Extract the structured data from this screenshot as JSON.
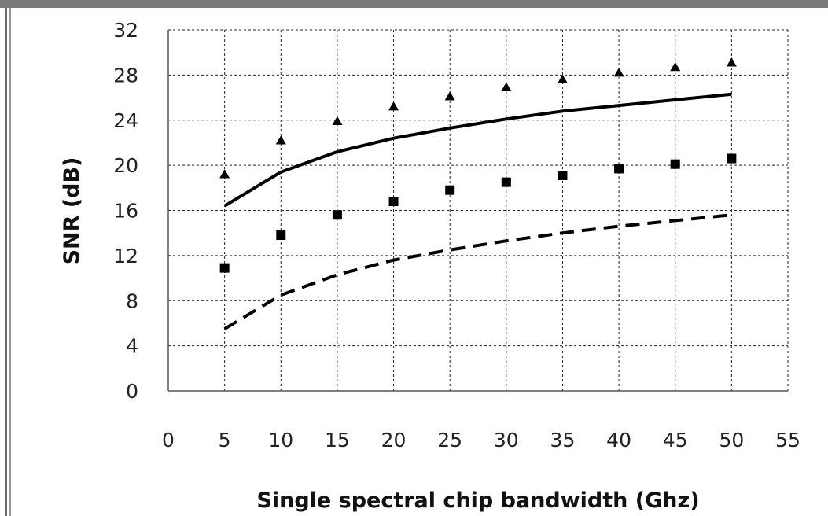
{
  "chart_data": {
    "type": "line",
    "xlabel": "Single spectral chip bandwidth (Ghz)",
    "ylabel": "SNR (dB)",
    "xlim": [
      0,
      55
    ],
    "ylim": [
      0,
      32
    ],
    "x_ticks": [
      0,
      5,
      10,
      15,
      20,
      25,
      30,
      35,
      40,
      45,
      50,
      55
    ],
    "y_ticks": [
      0,
      4,
      8,
      12,
      16,
      20,
      24,
      28,
      32
    ],
    "grid": true,
    "legend": "none",
    "series": [
      {
        "style": "solid-line",
        "color": "#000000",
        "x": [
          5,
          10,
          15,
          20,
          25,
          30,
          35,
          40,
          45,
          50
        ],
        "y": [
          16.4,
          19.4,
          21.2,
          22.4,
          23.3,
          24.1,
          24.8,
          25.3,
          25.8,
          26.3
        ]
      },
      {
        "style": "dashed-line",
        "color": "#000000",
        "x": [
          5,
          10,
          15,
          20,
          25,
          30,
          35,
          40,
          45,
          50
        ],
        "y": [
          5.5,
          8.5,
          10.3,
          11.6,
          12.5,
          13.3,
          14.0,
          14.6,
          15.1,
          15.6
        ]
      },
      {
        "style": "triangle-markers",
        "color": "#000000",
        "x": [
          5,
          10,
          15,
          20,
          25,
          30,
          35,
          40,
          45,
          50
        ],
        "y": [
          19.2,
          22.2,
          23.9,
          25.2,
          26.1,
          26.9,
          27.6,
          28.2,
          28.7,
          29.1
        ]
      },
      {
        "style": "square-markers",
        "color": "#000000",
        "x": [
          5,
          10,
          15,
          20,
          25,
          30,
          35,
          40,
          45,
          50
        ],
        "y": [
          10.9,
          13.8,
          15.6,
          16.8,
          17.8,
          18.5,
          19.1,
          19.7,
          20.1,
          20.6
        ]
      }
    ]
  }
}
